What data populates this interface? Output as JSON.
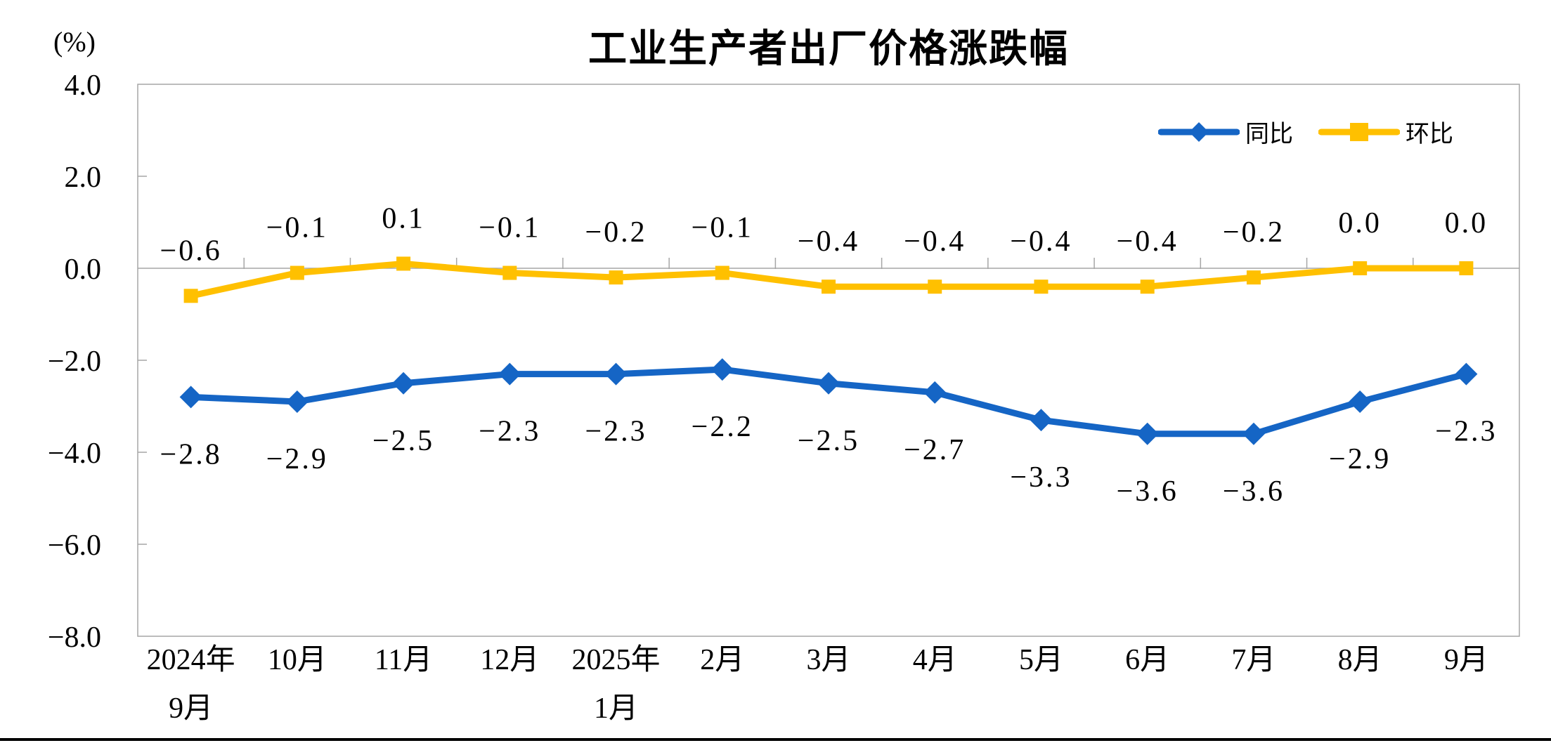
{
  "page": {
    "title": "工业生产者出厂价格涨跌幅",
    "y_unit_label": "(%)"
  },
  "legend": {
    "position": "top-right",
    "items": [
      {
        "label": "同比",
        "color": "#1565C5",
        "marker": "diamond"
      },
      {
        "label": "环比",
        "color": "#FFC000",
        "marker": "square"
      }
    ]
  },
  "chart_data": {
    "type": "line",
    "title": "工业生产者出厂价格涨跌幅",
    "ylabel": "(%)",
    "ylim": [
      -8.0,
      4.0
    ],
    "y_tick_step": 2.0,
    "y_tick_labels": [
      "4.0",
      "2.0",
      "0.0",
      "−2.0",
      "−4.0",
      "−6.0",
      "−8.0"
    ],
    "grid": "zero-line-only",
    "axis_color": "#A6A6A6",
    "text_color": "#000000",
    "categories": [
      {
        "line1": "2024年",
        "line2": "9月"
      },
      {
        "line1": "10月",
        "line2": ""
      },
      {
        "line1": "11月",
        "line2": ""
      },
      {
        "line1": "12月",
        "line2": ""
      },
      {
        "line1": "2025年",
        "line2": "1月"
      },
      {
        "line1": "2月",
        "line2": ""
      },
      {
        "line1": "3月",
        "line2": ""
      },
      {
        "line1": "4月",
        "line2": ""
      },
      {
        "line1": "5月",
        "line2": ""
      },
      {
        "line1": "6月",
        "line2": ""
      },
      {
        "line1": "7月",
        "line2": ""
      },
      {
        "line1": "8月",
        "line2": ""
      },
      {
        "line1": "9月",
        "line2": ""
      }
    ],
    "series": [
      {
        "name": "同比",
        "color": "#1565C5",
        "marker": "diamond",
        "label_position": "below",
        "values": [
          -2.8,
          -2.9,
          -2.5,
          -2.3,
          -2.3,
          -2.2,
          -2.5,
          -2.7,
          -3.3,
          -3.6,
          -3.6,
          -2.9,
          -2.3
        ],
        "labels": [
          "−2.8",
          "−2.9",
          "−2.5",
          "−2.3",
          "−2.3",
          "−2.2",
          "−2.5",
          "−2.7",
          "−3.3",
          "−3.6",
          "−3.6",
          "−2.9",
          "−2.3"
        ]
      },
      {
        "name": "环比",
        "color": "#FFC000",
        "marker": "square",
        "label_position": "above",
        "values": [
          -0.6,
          -0.1,
          0.1,
          -0.1,
          -0.2,
          -0.1,
          -0.4,
          -0.4,
          -0.4,
          -0.4,
          -0.2,
          0.0,
          0.0
        ],
        "labels": [
          "−0.6",
          "−0.1",
          "0.1",
          "−0.1",
          "−0.2",
          "−0.1",
          "−0.4",
          "−0.4",
          "−0.4",
          "−0.4",
          "−0.2",
          "0.0",
          "0.0"
        ]
      }
    ]
  }
}
